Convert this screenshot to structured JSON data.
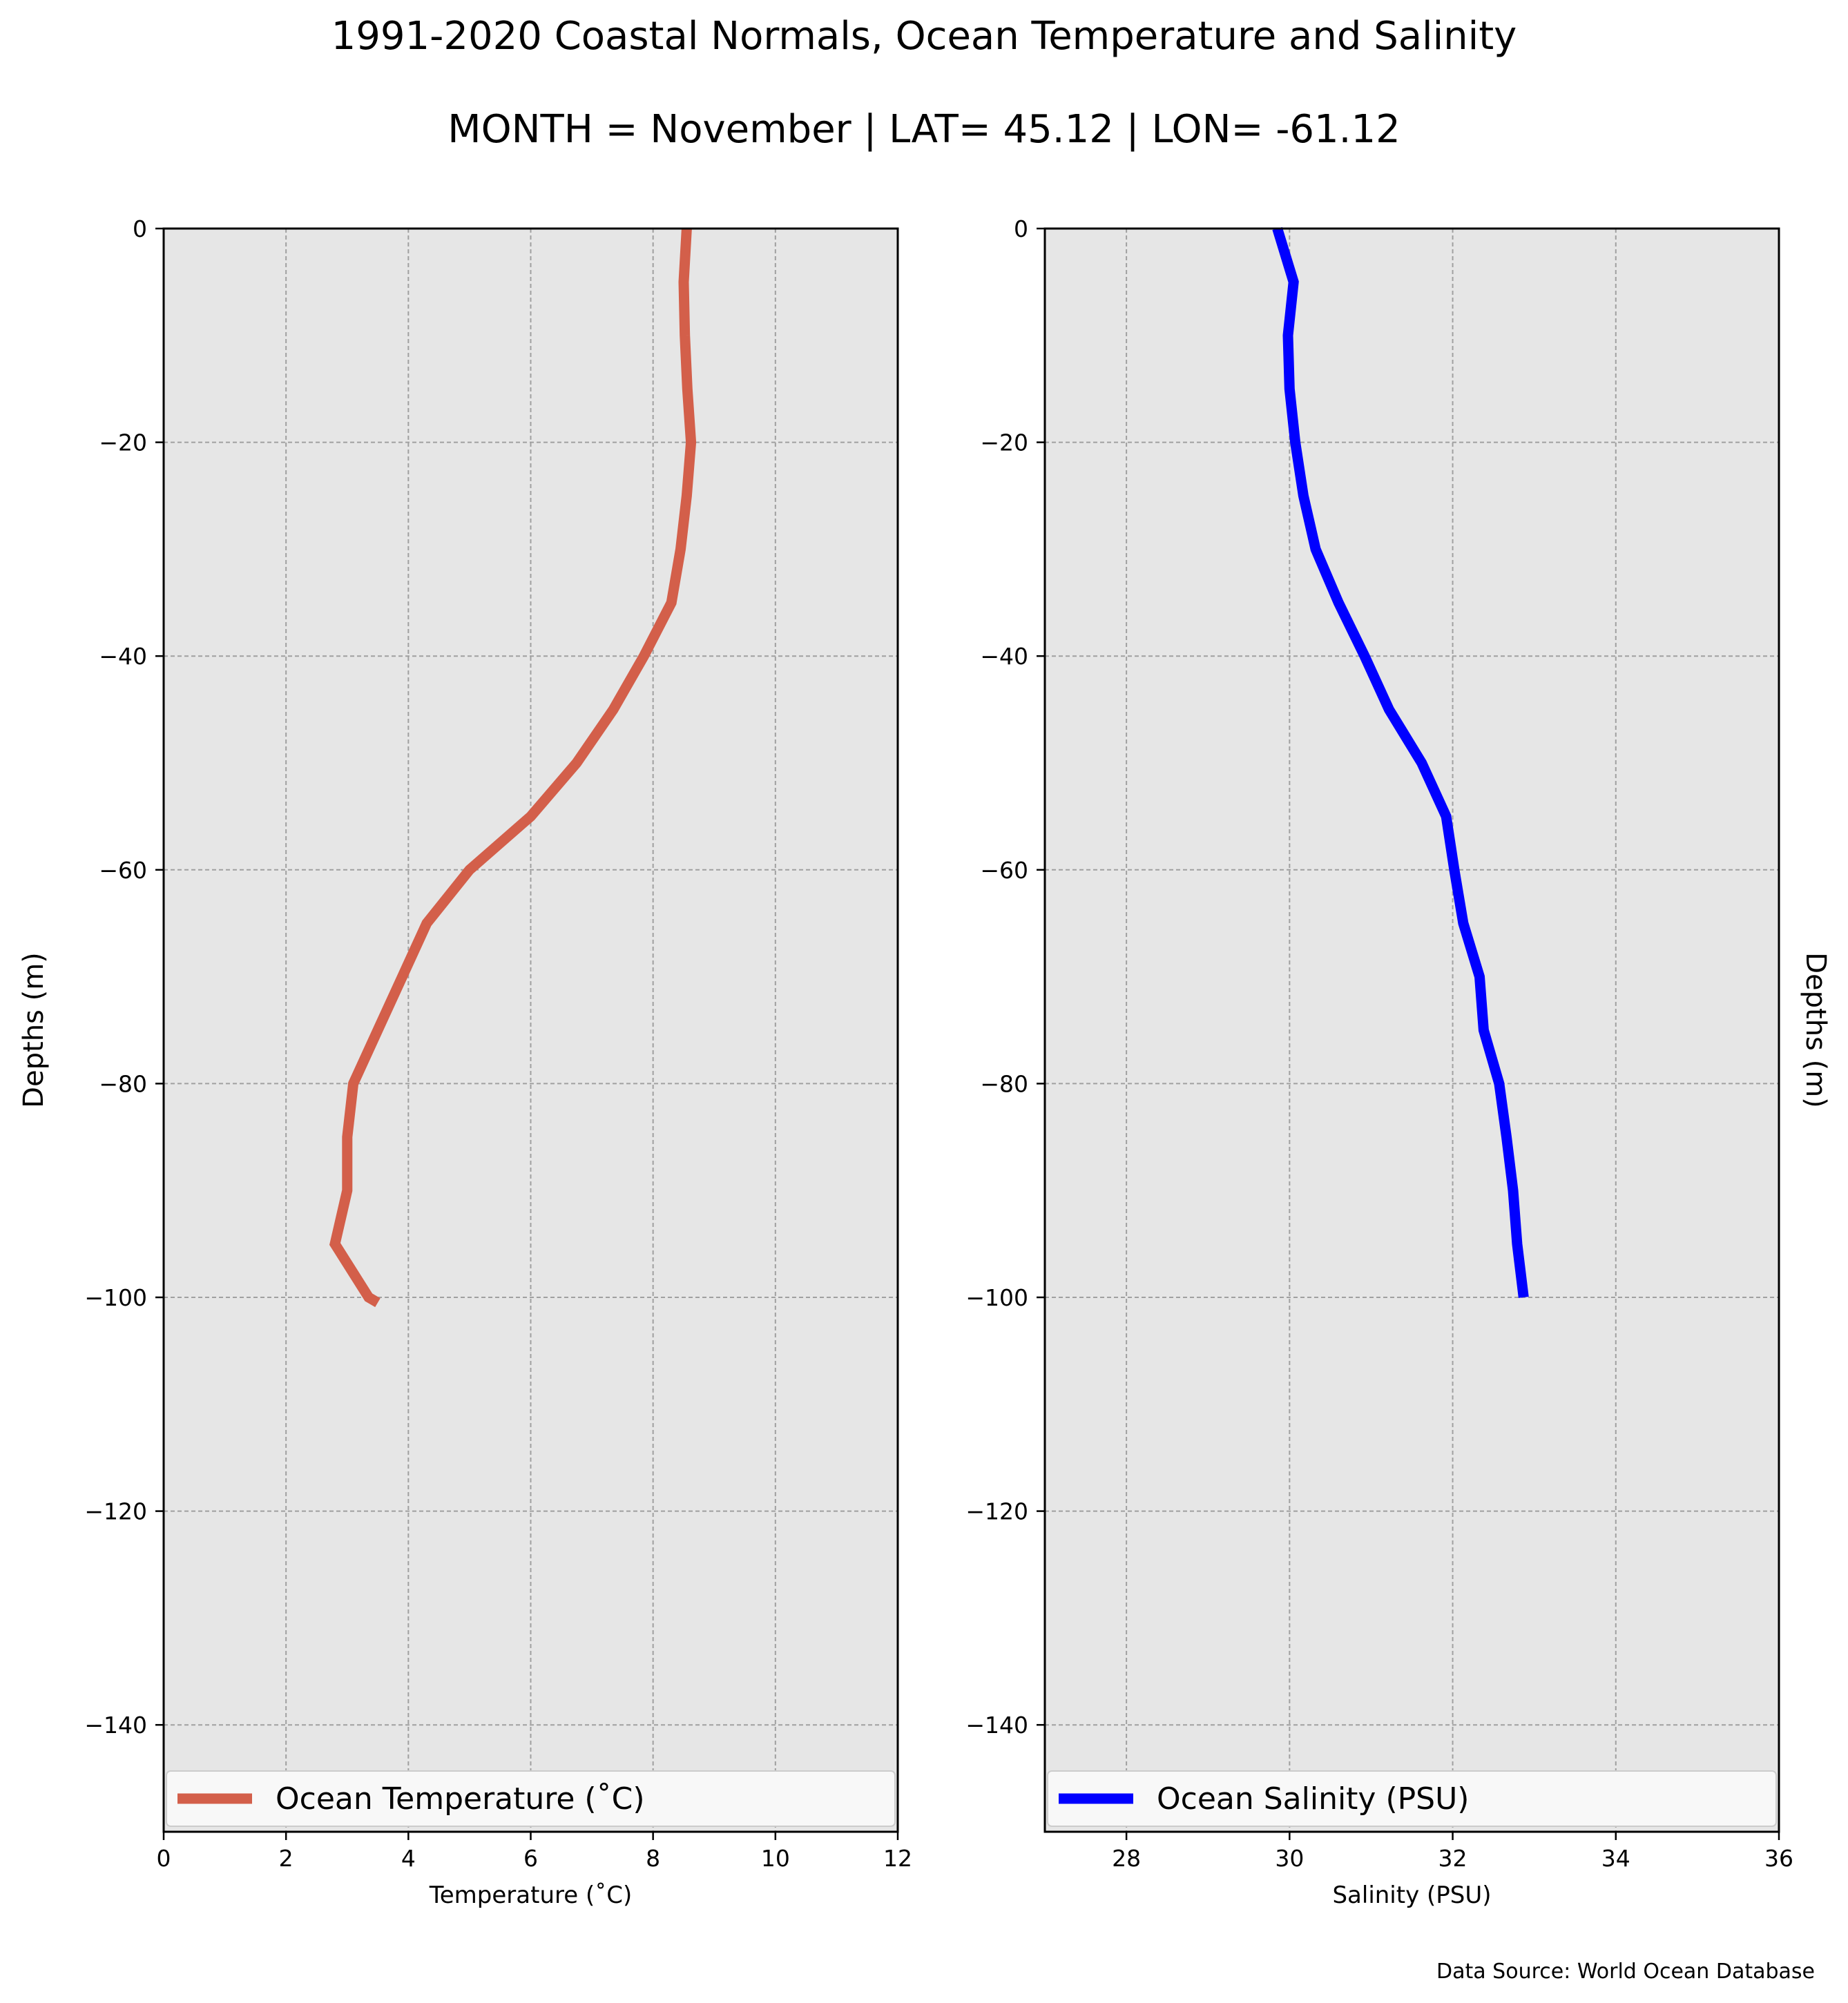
{
  "title": "1991-2020 Coastal Normals, Ocean Temperature and Salinity",
  "subtitle": "MONTH = November | LAT= 45.12 | LON= -61.12",
  "source": "Data Source: World Ocean Database",
  "colors": {
    "temperature": "#d35f4a",
    "salinity": "#0000ff",
    "axes_bg": "#e6e6e6",
    "grid": "#a0a0a0"
  },
  "chart_data": [
    {
      "type": "line",
      "xlabel": "Temperature ($^\\circ$C)",
      "xlabel_display": "Temperature (˚C)",
      "ylabel": "Depths (m)",
      "xlim": [
        0,
        12
      ],
      "ylim": [
        -150,
        0
      ],
      "xticks": [
        0,
        2,
        4,
        6,
        8,
        10,
        12
      ],
      "yticks": [
        0,
        -20,
        -40,
        -60,
        -80,
        -100,
        -120,
        -140
      ],
      "grid": true,
      "legend": "bottom",
      "series": [
        {
          "name": "Ocean Temperature (˚C)",
          "x": [
            8.55,
            8.5,
            8.52,
            8.56,
            8.62,
            8.55,
            8.45,
            8.3,
            7.85,
            7.35,
            6.75,
            6.0,
            5.0,
            4.3,
            3.9,
            3.5,
            3.1,
            3.0,
            3.0,
            2.8,
            3.35,
            3.5
          ],
          "y": [
            0,
            -5,
            -10,
            -15,
            -20,
            -25,
            -30,
            -35,
            -40,
            -45,
            -50,
            -55,
            -60,
            -65,
            -70,
            -75,
            -80,
            -85,
            -90,
            -95,
            -100,
            -100.5
          ]
        }
      ]
    },
    {
      "type": "line",
      "xlabel": "Salinity (PSU)",
      "ylabel": "Depths (m)",
      "ylabel_side": "right",
      "xlim": [
        27,
        36
      ],
      "ylim": [
        -150,
        0
      ],
      "xticks": [
        28,
        30,
        32,
        34,
        36
      ],
      "yticks": [
        0,
        -20,
        -40,
        -60,
        -80,
        -100,
        -120,
        -140
      ],
      "grid": true,
      "legend": "bottom",
      "series": [
        {
          "name": "Ocean Salinity (PSU)",
          "x": [
            29.85,
            30.05,
            29.98,
            30.0,
            30.07,
            30.17,
            30.32,
            30.6,
            30.92,
            31.22,
            31.62,
            31.92,
            32.02,
            32.13,
            32.33,
            32.38,
            32.57,
            32.66,
            32.74,
            32.79,
            32.87
          ],
          "y": [
            0,
            -5,
            -10,
            -15,
            -20,
            -25,
            -30,
            -35,
            -40,
            -45,
            -50,
            -55,
            -60,
            -65,
            -70,
            -75,
            -80,
            -85,
            -90,
            -95,
            -100
          ]
        }
      ]
    }
  ]
}
